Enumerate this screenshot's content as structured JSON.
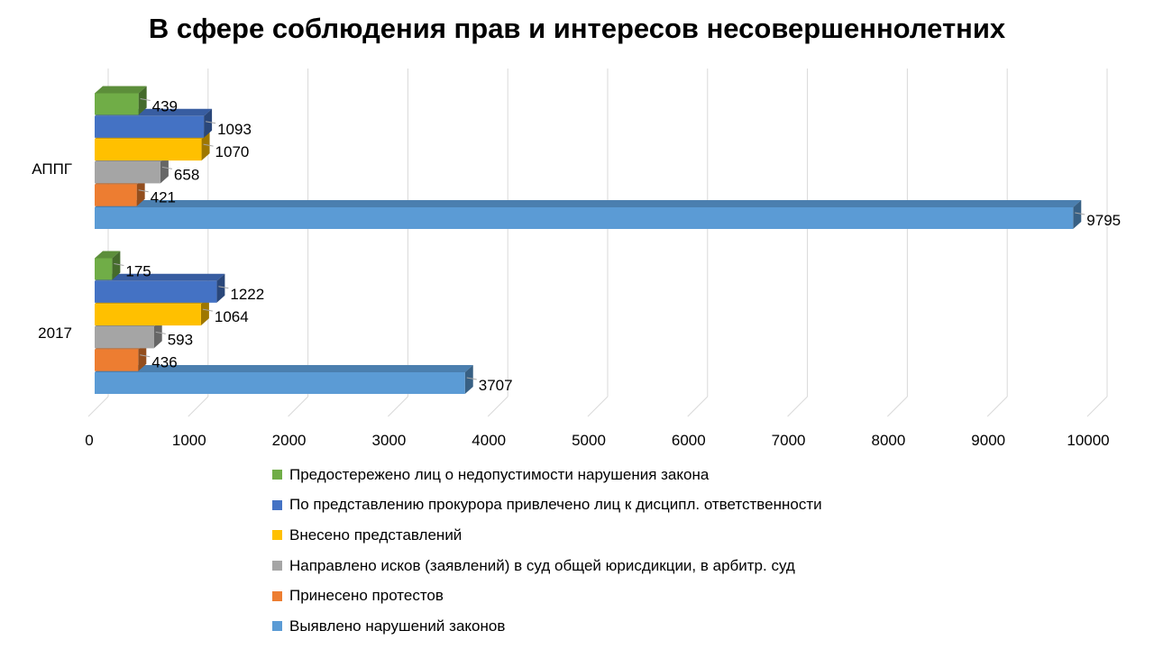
{
  "chart_data": {
    "type": "bar",
    "orientation": "horizontal",
    "style": "3d",
    "title": "В сфере соблюдения прав и интересов несовершеннолетних",
    "categories": [
      "2017",
      "АППГ"
    ],
    "xlim": [
      0,
      10000
    ],
    "xticks": [
      0,
      1000,
      2000,
      3000,
      4000,
      5000,
      6000,
      7000,
      8000,
      9000,
      10000
    ],
    "grid": true,
    "legend_position": "bottom",
    "series": [
      {
        "name": "Выявлено нарушений законов",
        "color": "#5b9bd5",
        "values": [
          3707,
          9795
        ]
      },
      {
        "name": "Принесено протестов",
        "color": "#ed7d31",
        "values": [
          436,
          421
        ]
      },
      {
        "name": "Направлено исков (заявлений) в суд общей юрисдикции, в арбитр. суд",
        "color": "#a5a5a5",
        "values": [
          593,
          658
        ]
      },
      {
        "name": "Внесено представлений",
        "color": "#ffc000",
        "values": [
          1064,
          1070
        ]
      },
      {
        "name": "По представлению прокурора привлечено лиц к дисципл. ответственности",
        "color": "#4472c4",
        "values": [
          1222,
          1093
        ]
      },
      {
        "name": "Предостережено лиц о недопустимости нарушения  закона",
        "color": "#70ad47",
        "values": [
          175,
          439
        ]
      }
    ]
  }
}
